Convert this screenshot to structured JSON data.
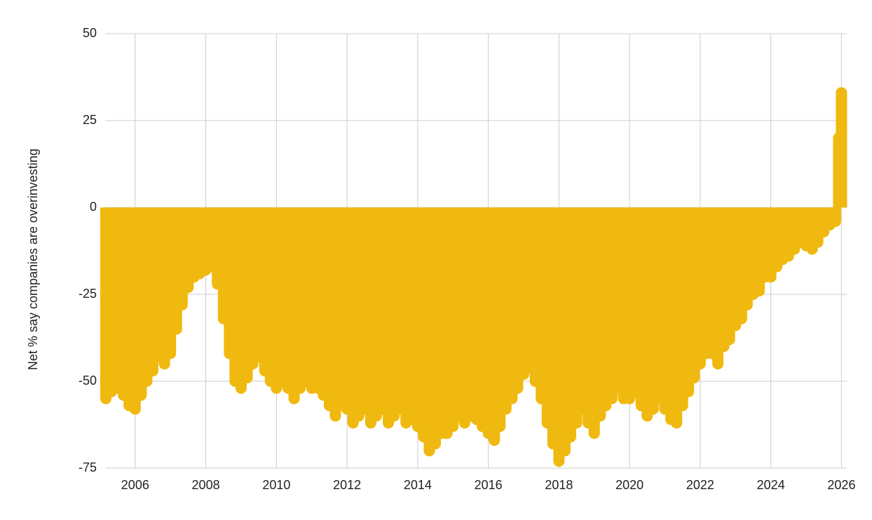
{
  "chart_data": {
    "type": "bar",
    "y_label": "Net % say companies are overinvesting",
    "color": "#f0b90f",
    "grid": true,
    "xlim": [
      2005.15,
      2026.15
    ],
    "xticks": [
      2006,
      2008,
      2010,
      2012,
      2014,
      2016,
      2018,
      2020,
      2022,
      2024,
      2026
    ],
    "ylim": [
      -75,
      50
    ],
    "yticks": [
      50,
      25,
      0,
      -25,
      -50,
      -75
    ],
    "x": [
      2005.17,
      2005.33,
      2005.5,
      2005.67,
      2005.83,
      2006.0,
      2006.17,
      2006.33,
      2006.5,
      2006.67,
      2006.83,
      2007.0,
      2007.17,
      2007.33,
      2007.5,
      2007.67,
      2007.83,
      2008.0,
      2008.17,
      2008.33,
      2008.5,
      2008.67,
      2008.83,
      2009.0,
      2009.17,
      2009.33,
      2009.5,
      2009.67,
      2009.83,
      2010.0,
      2010.17,
      2010.33,
      2010.5,
      2010.67,
      2010.83,
      2011.0,
      2011.17,
      2011.33,
      2011.5,
      2011.67,
      2011.83,
      2012.0,
      2012.17,
      2012.33,
      2012.5,
      2012.67,
      2012.83,
      2013.0,
      2013.17,
      2013.33,
      2013.5,
      2013.67,
      2013.83,
      2014.0,
      2014.17,
      2014.33,
      2014.5,
      2014.67,
      2014.83,
      2015.0,
      2015.17,
      2015.33,
      2015.5,
      2015.67,
      2015.83,
      2016.0,
      2016.17,
      2016.33,
      2016.5,
      2016.67,
      2016.83,
      2017.0,
      2017.17,
      2017.33,
      2017.5,
      2017.67,
      2017.83,
      2018.0,
      2018.17,
      2018.33,
      2018.5,
      2018.67,
      2018.83,
      2019.0,
      2019.17,
      2019.33,
      2019.5,
      2019.67,
      2019.83,
      2020.0,
      2020.17,
      2020.33,
      2020.5,
      2020.67,
      2020.83,
      2021.0,
      2021.17,
      2021.33,
      2021.5,
      2021.67,
      2021.83,
      2022.0,
      2022.17,
      2022.33,
      2022.5,
      2022.67,
      2022.83,
      2023.0,
      2023.17,
      2023.33,
      2023.5,
      2023.67,
      2023.83,
      2024.0,
      2024.17,
      2024.33,
      2024.5,
      2024.67,
      2024.83,
      2025.0,
      2025.17,
      2025.33,
      2025.5,
      2025.67,
      2025.83,
      2025.92,
      2026.0
    ],
    "values": [
      -55,
      -53,
      -52,
      -54,
      -57,
      -58,
      -54,
      -50,
      -47,
      -43,
      -45,
      -42,
      -35,
      -28,
      -23,
      -20,
      -19,
      -18,
      -17,
      -22,
      -32,
      -42,
      -50,
      -52,
      -49,
      -45,
      -43,
      -47,
      -50,
      -52,
      -50,
      -52,
      -55,
      -52,
      -50,
      -52,
      -52,
      -54,
      -57,
      -60,
      -57,
      -58,
      -62,
      -60,
      -58,
      -62,
      -60,
      -58,
      -62,
      -60,
      -58,
      -62,
      -61,
      -63,
      -66,
      -70,
      -68,
      -65,
      -65,
      -63,
      -60,
      -62,
      -60,
      -61,
      -63,
      -65,
      -67,
      -63,
      -58,
      -55,
      -52,
      -48,
      -46,
      -50,
      -55,
      -62,
      -68,
      -73,
      -70,
      -66,
      -62,
      -58,
      -62,
      -65,
      -60,
      -57,
      -55,
      -52,
      -55,
      -55,
      -53,
      -57,
      -60,
      -58,
      -55,
      -58,
      -61,
      -62,
      -57,
      -53,
      -49,
      -45,
      -42,
      -42,
      -45,
      -40,
      -38,
      -34,
      -32,
      -28,
      -25,
      -24,
      -20,
      -20,
      -17,
      -15,
      -14,
      -12,
      -10,
      -11,
      -12,
      -10,
      -7,
      -5,
      -4,
      20,
      33
    ]
  }
}
